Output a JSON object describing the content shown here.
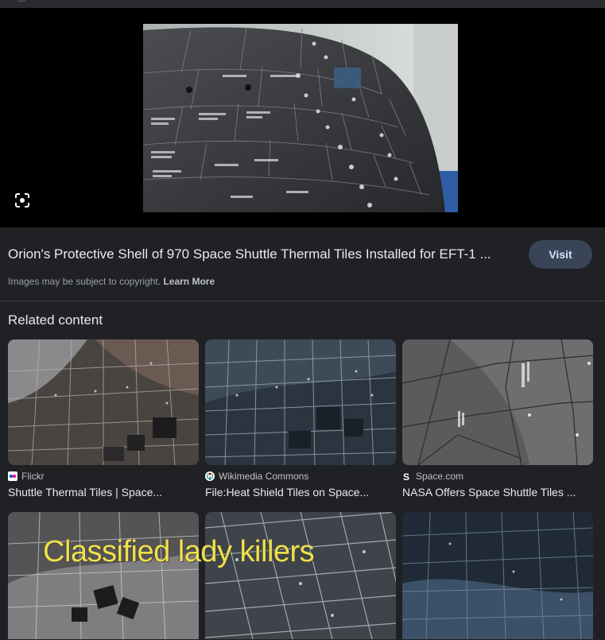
{
  "preview": {
    "title": "Orion's Protective Shell of 970 Space Shuttle Thermal Tiles Installed for EFT-1 ...",
    "visit_label": "Visit",
    "copyright_text": "Images may be subject to copyright.",
    "learn_more_label": "Learn More"
  },
  "related": {
    "heading": "Related content",
    "items": [
      {
        "source": "Flickr",
        "caption": "Shuttle Thermal Tiles | Space...",
        "icon": "flickr-icon"
      },
      {
        "source": "Wikimedia Commons",
        "caption": "File:Heat Shield Tiles on Space...",
        "icon": "wikimedia-icon"
      },
      {
        "source": "Space.com",
        "caption": "NASA Offers Space Shuttle Tiles ...",
        "icon": "spacecom-icon"
      }
    ],
    "bottom_overlay_text": "Classified lady killers"
  },
  "colors": {
    "background": "#202124",
    "visit_button": "#394457",
    "visit_text": "#d2e3fc"
  }
}
